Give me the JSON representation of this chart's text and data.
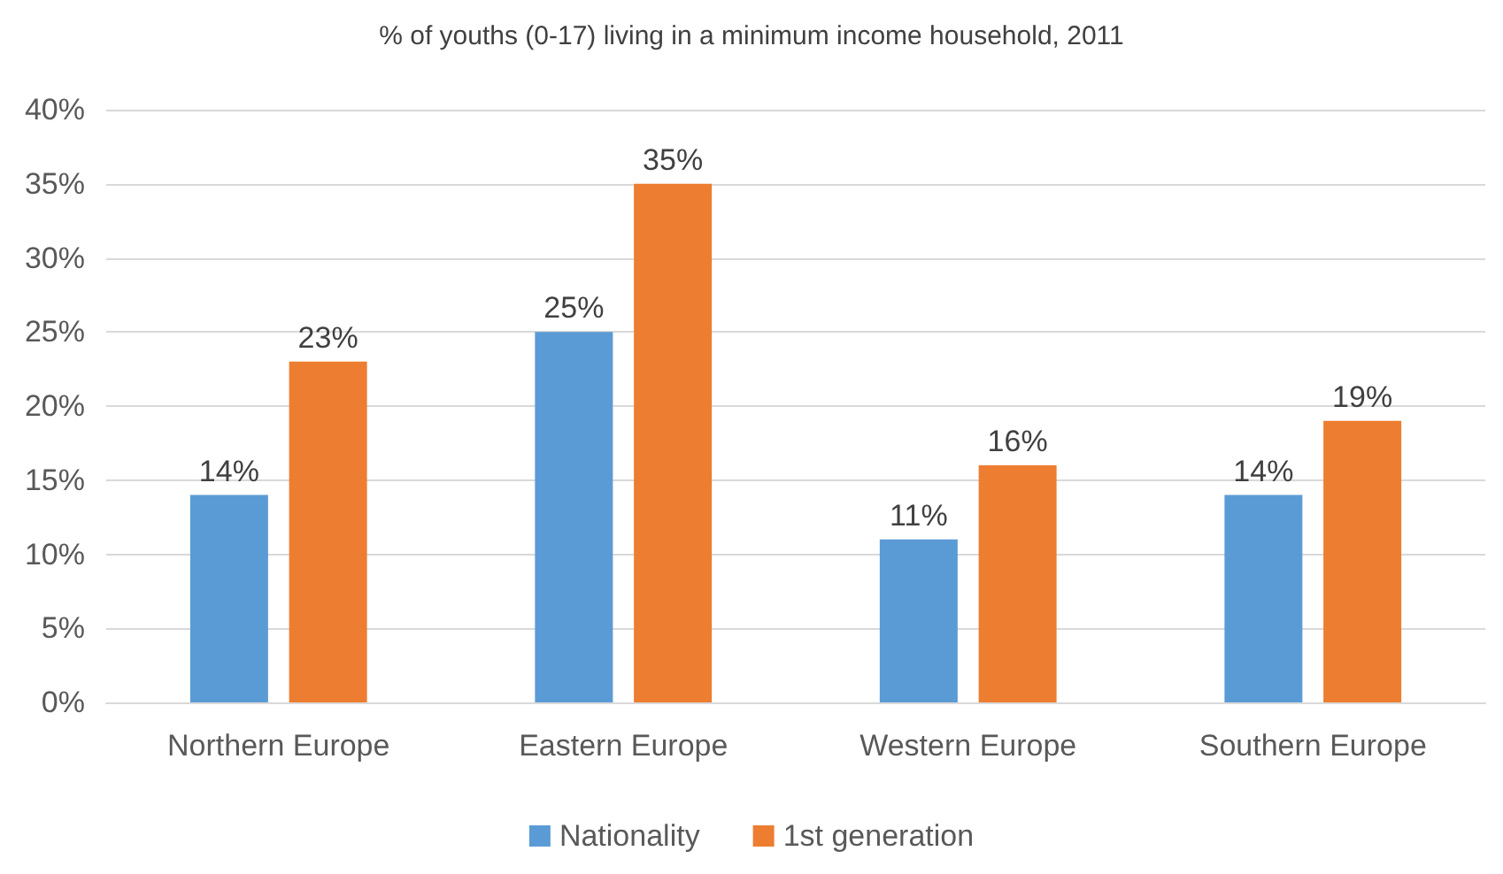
{
  "chart_data": {
    "type": "bar",
    "title": "% of youths (0-17) living in a minimum income household, 2011",
    "categories": [
      "Northern Europe",
      "Eastern Europe",
      "Western Europe",
      "Southern Europe"
    ],
    "series": [
      {
        "name": "Nationality",
        "color": "#5b9bd5",
        "values": [
          14,
          25,
          11,
          14
        ],
        "value_labels": [
          "14%",
          "25%",
          "11%",
          "14%"
        ]
      },
      {
        "name": "1st generation",
        "color": "#ed7d31",
        "values": [
          23,
          35,
          16,
          19
        ],
        "value_labels": [
          "23%",
          "35%",
          "16%",
          "19%"
        ]
      }
    ],
    "ylim": [
      0,
      40
    ],
    "yticks": [
      {
        "value": 0,
        "label": "0%"
      },
      {
        "value": 5,
        "label": "5%"
      },
      {
        "value": 10,
        "label": "10%"
      },
      {
        "value": 15,
        "label": "15%"
      },
      {
        "value": 20,
        "label": "20%"
      },
      {
        "value": 25,
        "label": "25%"
      },
      {
        "value": 30,
        "label": "30%"
      },
      {
        "value": 35,
        "label": "35%"
      },
      {
        "value": 40,
        "label": "40%"
      }
    ],
    "grid": "y",
    "legend": "bottom"
  }
}
